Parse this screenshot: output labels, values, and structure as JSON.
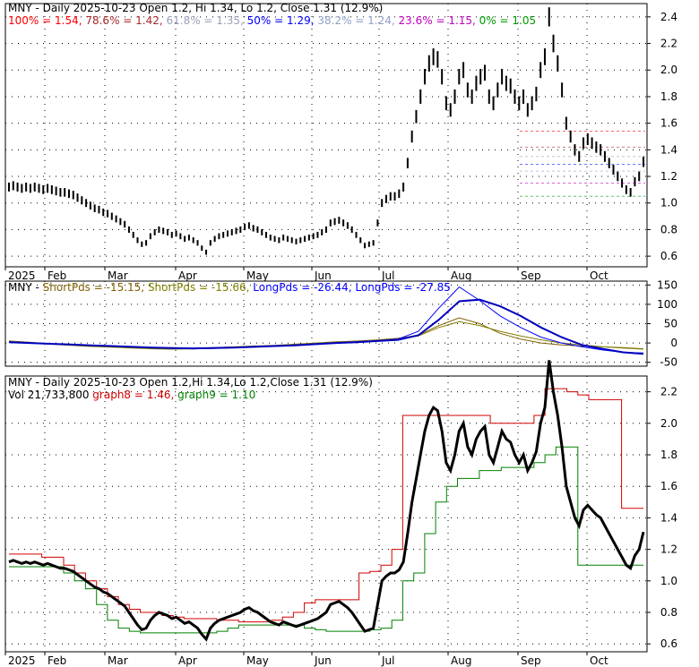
{
  "chart_data": [
    {
      "type": "line",
      "panel": "price",
      "title": "MNY - Daily 2025-10-23 Open 1.2, Hi 1.34, Lo 1.2, Close 1.31 (12.9%)",
      "fib_levels": [
        {
          "label": "100% = 1.54",
          "value": 1.54,
          "color": "#ff0000"
        },
        {
          "label": "78.6% = 1.42",
          "value": 1.42,
          "color": "#a52a2a"
        },
        {
          "label": "61.8% = 1.35",
          "value": 1.35,
          "color": "#9aa0b8"
        },
        {
          "label": "50% = 1.29",
          "value": 1.29,
          "color": "#0000ff"
        },
        {
          "label": "38.2% = 1.24",
          "value": 1.24,
          "color": "#8fa0c8"
        },
        {
          "label": "23.6% = 1.15",
          "value": 1.15,
          "color": "#c000c0"
        },
        {
          "label": "0% = 1.05",
          "value": 1.05,
          "color": "#009900"
        }
      ],
      "y_ticks": [
        "2.4",
        "2.2",
        "2.0",
        "1.8",
        "1.6",
        "1.4",
        "1.2",
        "1.0",
        "0.8",
        "0.6"
      ],
      "ylim": [
        0.52,
        2.5
      ],
      "x_labels": [
        "2025",
        "Feb",
        "Mar",
        "Apr",
        "May",
        "Jun",
        "Jul",
        "Aug",
        "Sep",
        "Oct"
      ],
      "grid": true,
      "series": [
        {
          "values": [
            1.12,
            1.13,
            1.12,
            1.11,
            1.12,
            1.11,
            1.12,
            1.11,
            1.1,
            1.11,
            1.1,
            1.09,
            1.08,
            1.08,
            1.07,
            1.06,
            1.04,
            1.02,
            1.0,
            0.98,
            0.96,
            0.95,
            0.93,
            0.92,
            0.9,
            0.88,
            0.86,
            0.84,
            0.8,
            0.76,
            0.72,
            0.69,
            0.7,
            0.75,
            0.78,
            0.8,
            0.79,
            0.78,
            0.76,
            0.77,
            0.75,
            0.73,
            0.74,
            0.72,
            0.7,
            0.66,
            0.63,
            0.7,
            0.73,
            0.75,
            0.76,
            0.77,
            0.78,
            0.79,
            0.8,
            0.82,
            0.83,
            0.81,
            0.8,
            0.78,
            0.76,
            0.74,
            0.73,
            0.72,
            0.74,
            0.73,
            0.72,
            0.71,
            0.72,
            0.73,
            0.74,
            0.75,
            0.76,
            0.78,
            0.8,
            0.85,
            0.86,
            0.87,
            0.85,
            0.83,
            0.8,
            0.76,
            0.72,
            0.68,
            0.69,
            0.7,
            0.85,
            1.0,
            1.03,
            1.05,
            1.05,
            1.07,
            1.12,
            1.3,
            1.5,
            1.65,
            1.8,
            1.95,
            2.05,
            2.1,
            2.08,
            1.95,
            1.75,
            1.7,
            1.8,
            1.95,
            2.0,
            1.85,
            1.8,
            1.9,
            1.95,
            1.98,
            1.8,
            1.75,
            1.85,
            1.95,
            1.9,
            1.88,
            1.8,
            1.75,
            1.8,
            1.7,
            1.75,
            1.82,
            2.0,
            2.1,
            2.4,
            2.2,
            2.05,
            1.85,
            1.6,
            1.5,
            1.4,
            1.35,
            1.45,
            1.48,
            1.45,
            1.42,
            1.4,
            1.35,
            1.3,
            1.25,
            1.2,
            1.15,
            1.1,
            1.08,
            1.16,
            1.2,
            1.31
          ]
        }
      ]
    },
    {
      "type": "line",
      "panel": "oscillator",
      "title": "MNY - ShortPds = -15.15, ShortPds = -15.66, LongPds = -26.44, LongPds = -27.85",
      "legend": [
        {
          "label": "MNY -",
          "color": "#000000"
        },
        {
          "label": "ShortPds = -15.15,",
          "color": "#806000"
        },
        {
          "label": "ShortPds = -15.66,",
          "color": "#808000"
        },
        {
          "label": "LongPds = -26.44,",
          "color": "#0000ff"
        },
        {
          "label": "LongPds = -27.85",
          "color": "#0000ff"
        }
      ],
      "y_ticks": [
        "150",
        "100",
        "50",
        "0",
        "-50"
      ],
      "ylim": [
        -60,
        160
      ],
      "grid": true,
      "series": [
        {
          "name": "ShortPds",
          "values": [
            5,
            2,
            -2,
            -5,
            -8,
            -10,
            -12,
            -14,
            -15,
            -14,
            -12,
            -10,
            -8,
            -6,
            -3,
            0,
            3,
            5,
            8,
            12,
            20,
            45,
            65,
            50,
            25,
            10,
            0,
            -5,
            -8,
            -10,
            -12,
            -15
          ]
        },
        {
          "name": "ShortPds",
          "values": [
            4,
            1,
            -3,
            -6,
            -9,
            -11,
            -13,
            -15,
            -16,
            -15,
            -13,
            -11,
            -9,
            -7,
            -4,
            -1,
            2,
            4,
            7,
            10,
            18,
            40,
            55,
            45,
            30,
            18,
            8,
            0,
            -5,
            -10,
            -13,
            -16
          ]
        },
        {
          "name": "LongPds",
          "values": [
            3,
            1,
            -2,
            -4,
            -6,
            -8,
            -10,
            -12,
            -14,
            -15,
            -14,
            -12,
            -10,
            -8,
            -5,
            -2,
            1,
            3,
            6,
            10,
            30,
            90,
            145,
            110,
            70,
            40,
            15,
            0,
            -10,
            -18,
            -24,
            -26
          ]
        },
        {
          "name": "LongPds",
          "values": [
            2,
            0,
            -2,
            -4,
            -6,
            -8,
            -10,
            -12,
            -13,
            -14,
            -13,
            -12,
            -10,
            -8,
            -6,
            -3,
            0,
            2,
            5,
            8,
            20,
            60,
            108,
            112,
            95,
            70,
            40,
            15,
            -5,
            -15,
            -24,
            -28
          ]
        }
      ]
    },
    {
      "type": "line",
      "panel": "bottom",
      "title": "MNY - Daily 2025-10-23 Open 1.2,Hi 1.34,Lo 1.2,Close 1.31 (12.9%)",
      "subtitle_parts": [
        {
          "label": "Vol 21,733,800",
          "color": "#000000"
        },
        {
          "label": "graph8 = 1.46,",
          "color": "#d00000"
        },
        {
          "label": "graph9 = 1.10",
          "color": "#008000"
        }
      ],
      "y_ticks": [
        "2.2",
        "2.0",
        "1.8",
        "1.6",
        "1.4",
        "1.2",
        "1.0",
        "0.8",
        "0.6"
      ],
      "ylim": [
        0.55,
        2.3
      ],
      "x_labels": [
        "2025",
        "Feb",
        "Mar",
        "Apr",
        "May",
        "Jun",
        "Jul",
        "Aug",
        "Sep",
        "Oct"
      ],
      "grid": true,
      "series": [
        {
          "name": "graph8",
          "values": [
            1.17,
            1.17,
            1.17,
            1.15,
            1.15,
            1.1,
            1.05,
            1.0,
            0.95,
            0.9,
            0.85,
            0.82,
            0.8,
            0.8,
            0.78,
            0.77,
            0.76,
            0.76,
            0.76,
            0.75,
            0.75,
            0.74,
            0.74,
            0.74,
            0.75,
            0.77,
            0.8,
            0.86,
            0.88,
            0.88,
            0.88,
            0.88,
            1.05,
            1.06,
            1.1,
            1.2,
            2.05,
            2.05,
            2.05,
            2.05,
            2.05,
            2.05,
            2.05,
            2.05,
            2.0,
            2.0,
            2.0,
            2.0,
            2.05,
            2.22,
            2.22,
            2.2,
            2.18,
            2.15,
            2.15,
            2.15,
            1.46,
            1.46,
            1.46
          ]
        },
        {
          "name": "graph9",
          "values": [
            1.09,
            1.09,
            1.09,
            1.09,
            1.09,
            1.05,
            1.0,
            0.95,
            0.85,
            0.75,
            0.7,
            0.68,
            0.67,
            0.67,
            0.67,
            0.67,
            0.67,
            0.67,
            0.67,
            0.68,
            0.7,
            0.72,
            0.72,
            0.72,
            0.72,
            0.72,
            0.72,
            0.7,
            0.69,
            0.68,
            0.68,
            0.68,
            0.68,
            0.69,
            0.7,
            0.75,
            1.0,
            1.05,
            1.3,
            1.5,
            1.6,
            1.65,
            1.65,
            1.7,
            1.7,
            1.72,
            1.72,
            1.72,
            1.75,
            1.8,
            1.85,
            1.85,
            1.1,
            1.1,
            1.1,
            1.1,
            1.1,
            1.1,
            1.1
          ]
        }
      ]
    }
  ]
}
